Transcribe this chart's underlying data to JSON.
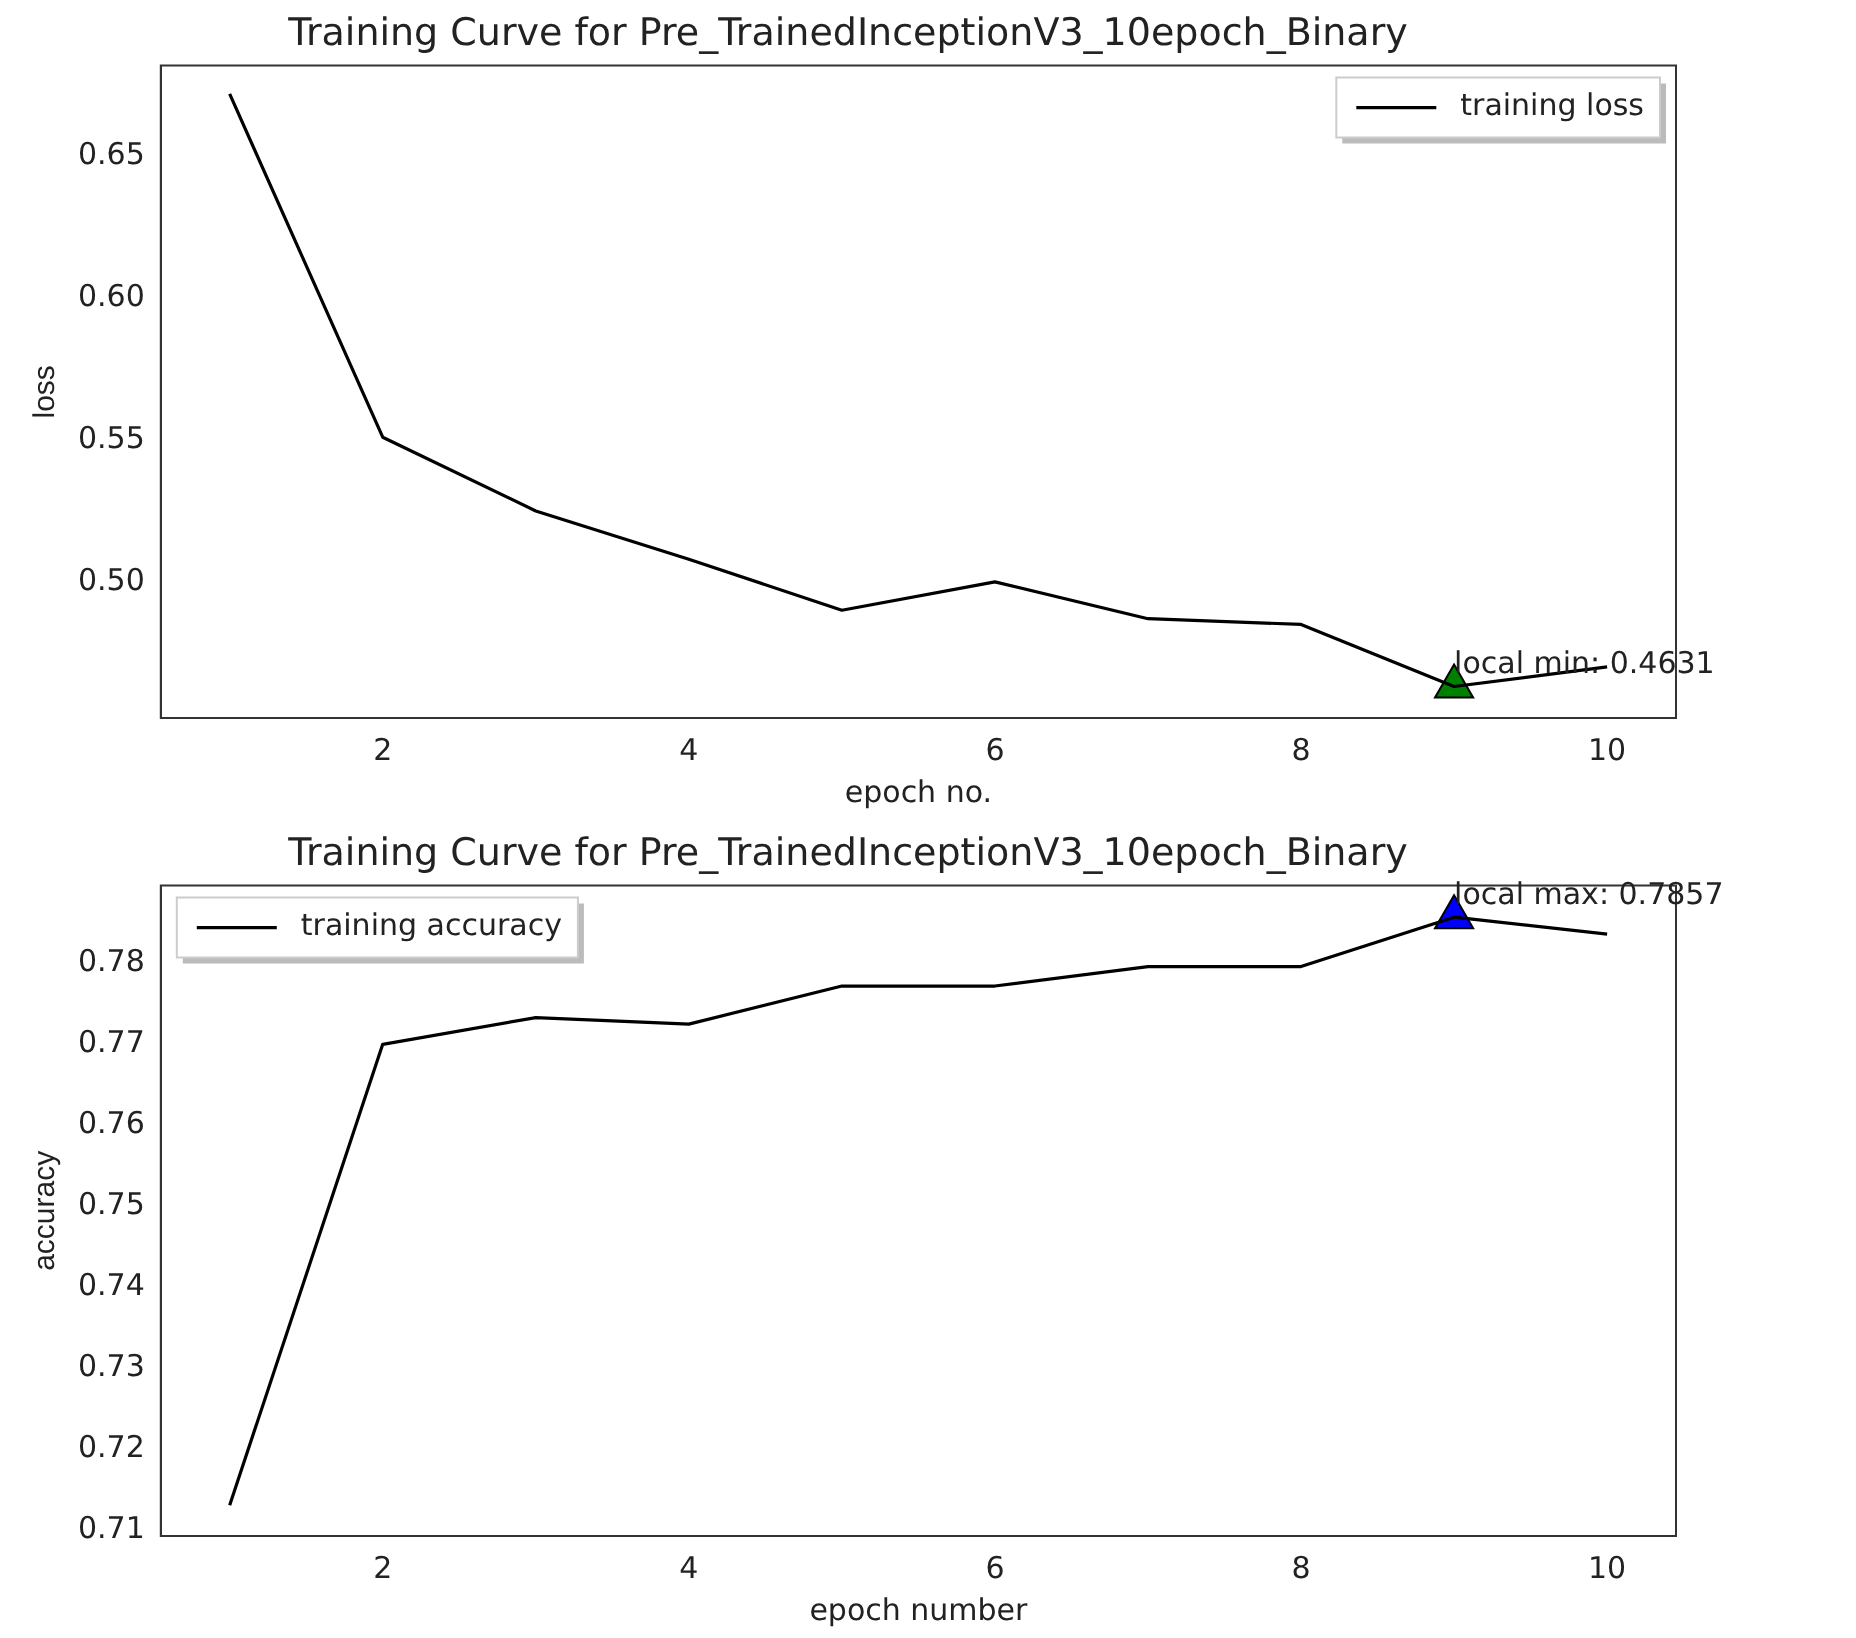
{
  "chart_data": [
    {
      "type": "line",
      "title": "Training Curve for Pre_TrainedInceptionV3_10epoch_Binary",
      "xlabel": "epoch no.",
      "ylabel": "loss",
      "x": [
        1,
        2,
        3,
        4,
        5,
        6,
        7,
        8,
        9,
        10
      ],
      "series": [
        {
          "name": "training loss",
          "color": "#000000",
          "values": [
            0.672,
            0.551,
            0.525,
            0.508,
            0.49,
            0.5,
            0.487,
            0.485,
            0.4631,
            0.47
          ]
        },
        {
          "type": "scatter",
          "marker": "triangle",
          "color": "#008000",
          "values": [
            null,
            null,
            null,
            null,
            null,
            null,
            null,
            null,
            0.4631,
            null
          ]
        }
      ],
      "xlim": [
        0.55,
        10.45
      ],
      "xticks": [
        2,
        4,
        6,
        8,
        10
      ],
      "ylim": [
        0.452,
        0.682
      ],
      "yticks": [
        {
          "value": 0.5,
          "label": "0.50"
        },
        0.55,
        {
          "value": 0.6,
          "label": "0.60"
        },
        0.65
      ],
      "annotations": [
        {
          "text": "local min: 0.4631",
          "x": 9,
          "y": 0.4631
        }
      ],
      "legend": "top right",
      "grid": false,
      "marker": "none",
      "line_style": "solid"
    },
    {
      "type": "line",
      "title": "Training Curve for Pre_TrainedInceptionV3_10epoch_Binary",
      "xlabel": "epoch number",
      "ylabel": "accuracy",
      "x": [
        1,
        2,
        3,
        4,
        5,
        6,
        7,
        8,
        9,
        10
      ],
      "series": [
        {
          "name": "training accuracy",
          "color": "#000000",
          "values": [
            0.7131,
            0.77,
            0.7733,
            0.7725,
            0.7772,
            0.7772,
            0.7796,
            0.7796,
            0.7857,
            0.7836
          ]
        },
        {
          "type": "scatter",
          "marker": "triangle",
          "color": "#0000ff",
          "values": [
            null,
            null,
            null,
            null,
            null,
            null,
            null,
            null,
            0.7857,
            null
          ]
        }
      ],
      "xlim": [
        0.55,
        10.45
      ],
      "xticks": [
        2,
        4,
        6,
        8,
        10
      ],
      "ylim": [
        0.7093,
        0.7896
      ],
      "yticks": [
        0.71,
        0.72,
        0.73,
        0.74,
        0.75,
        0.76,
        0.77,
        0.78
      ],
      "annotations": [
        {
          "text": "local max: 0.7857",
          "x": 9,
          "y": 0.7857
        }
      ],
      "legend": "top left",
      "grid": false,
      "marker": "none",
      "line_style": "solid"
    }
  ]
}
